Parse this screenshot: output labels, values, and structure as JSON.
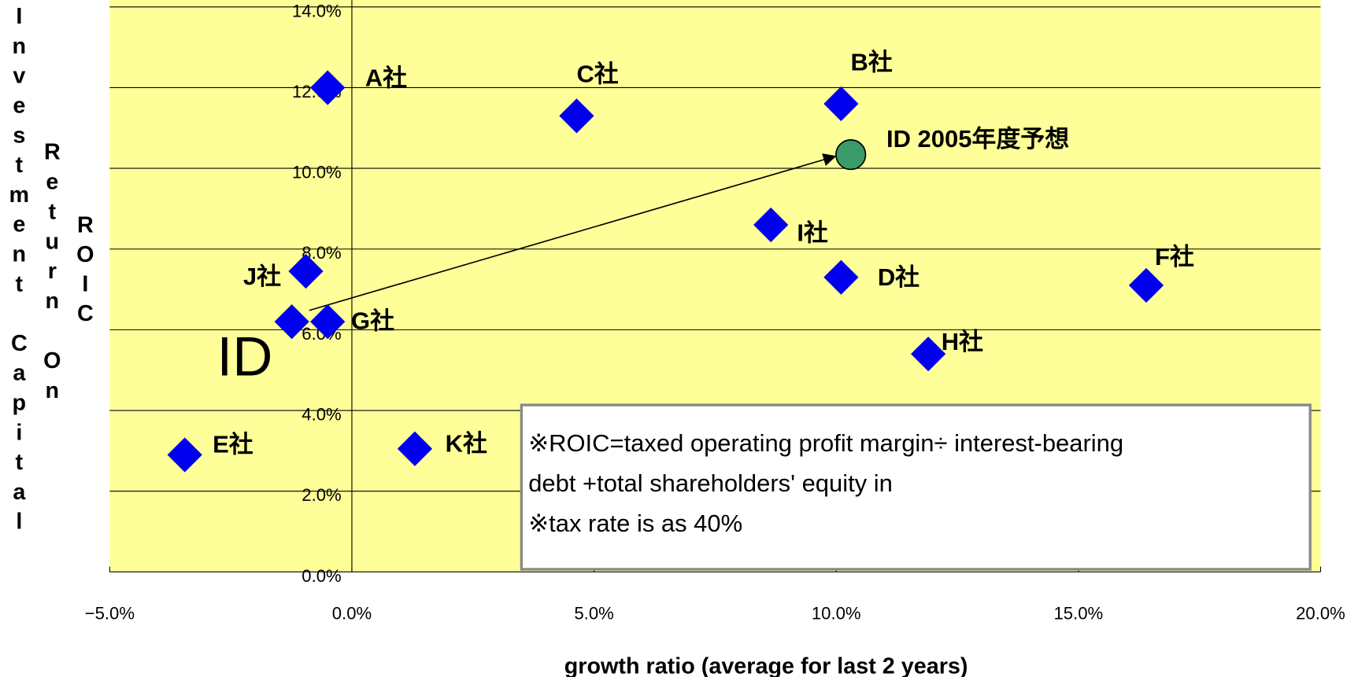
{
  "chart_data": {
    "type": "scatter",
    "y_label_lines": [
      "Investment Capital",
      "Return On",
      "ROIC"
    ],
    "x_label": "growth ratio (average for last 2 years)",
    "xlim": [
      -5,
      20
    ],
    "xticks": [
      {
        "value": -5,
        "label": "−5.0%"
      },
      {
        "value": 0,
        "label": "0.0%"
      },
      {
        "value": 5,
        "label": "5.0%"
      },
      {
        "value": 10,
        "label": "10.0%"
      },
      {
        "value": 15,
        "label": "15.0%"
      },
      {
        "value": 20,
        "label": "20.0%"
      }
    ],
    "ylim": [
      0,
      14
    ],
    "yticks": [
      {
        "value": 0,
        "label": "0.0%"
      },
      {
        "value": 2,
        "label": "2.0%"
      },
      {
        "value": 4,
        "label": "4.0%"
      },
      {
        "value": 6,
        "label": "6.0%"
      },
      {
        "value": 8,
        "label": "8.0%"
      },
      {
        "value": 10,
        "label": "10.0%"
      },
      {
        "value": 12,
        "label": "12.0%"
      },
      {
        "value": 14,
        "label": "14.0%"
      }
    ],
    "grid": true,
    "series": [
      {
        "color": "#0000ee",
        "marker": "diamond",
        "labels": [
          "A社",
          "C社",
          "B社",
          "I社",
          "F社",
          "D社",
          "J社",
          "G社",
          "H社",
          "E社",
          "K社",
          "ID"
        ],
        "x": [
          -0.5,
          4.64,
          10.1,
          8.65,
          16.4,
          10.1,
          -0.95,
          -0.5,
          11.9,
          -3.45,
          1.3,
          -1.24
        ],
        "values": [
          12.0,
          11.3,
          11.6,
          8.6,
          7.1,
          7.3,
          7.45,
          6.2,
          5.4,
          2.9,
          3.05,
          6.2
        ]
      },
      {
        "color": "#3a9a6a",
        "marker": "circle",
        "labels": [
          "ID 2005年度予想"
        ],
        "x": [
          10.3
        ],
        "values": [
          10.34
        ]
      }
    ],
    "annotation_lines": [
      "※ROIC=taxed operating profit margin÷ interest-bearing",
      "debt +total shareholders' equity in",
      "※tax rate is as 40%"
    ]
  }
}
